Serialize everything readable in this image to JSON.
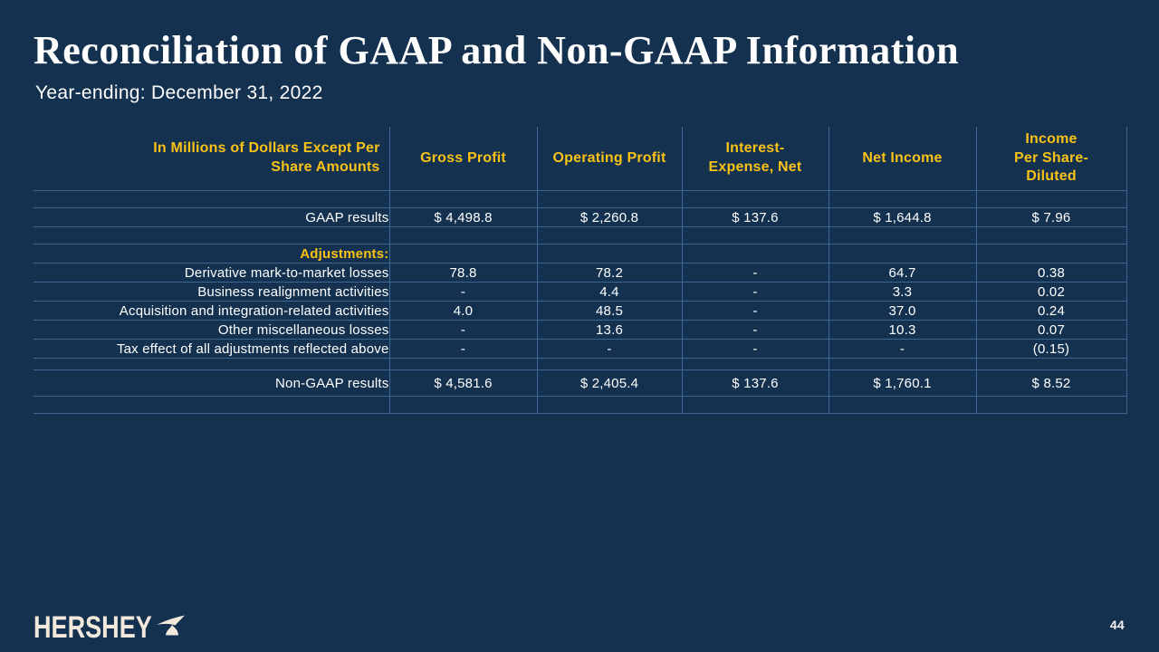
{
  "slide": {
    "title": "Reconciliation of GAAP and Non-GAAP Information",
    "subtitle": "Year-ending: December 31, 2022",
    "page_number": "44",
    "logo_text": "HERSHEY",
    "logo_icon": "hershey-kiss-icon"
  },
  "colors": {
    "background_navy": "#14314F",
    "accent_gold": "#F9C216",
    "text_white": "#FFFFFF",
    "grid_line_blue": "#5C90C6",
    "logo_cream": "#F2E8DC"
  },
  "table": {
    "columns": [
      "In Millions of Dollars Except Per\nShare Amounts",
      "Gross Profit",
      "Operating Profit",
      "Interest-\nExpense, Net",
      "Net Income",
      "Income\nPer Share-\nDiluted"
    ],
    "rows": [
      {
        "type": "spacer",
        "label": "",
        "values": [
          "",
          "",
          "",
          "",
          ""
        ]
      },
      {
        "type": "data",
        "label": "GAAP results",
        "values": [
          "$ 4,498.8",
          "$ 2,260.8",
          "$ 137.6",
          "$ 1,644.8",
          "$ 7.96"
        ]
      },
      {
        "type": "spacer",
        "label": "",
        "values": [
          "",
          "",
          "",
          "",
          ""
        ]
      },
      {
        "type": "section",
        "label": "Adjustments:",
        "values": [
          "",
          "",
          "",
          "",
          ""
        ]
      },
      {
        "type": "data",
        "label": "Derivative mark-to-market losses",
        "values": [
          "78.8",
          "78.2",
          "-",
          "64.7",
          "0.38"
        ]
      },
      {
        "type": "data",
        "label": "Business realignment activities",
        "values": [
          "-",
          "4.4",
          "-",
          "3.3",
          "0.02"
        ]
      },
      {
        "type": "data",
        "label": "Acquisition and integration-related activities",
        "values": [
          "4.0",
          "48.5",
          "-",
          "37.0",
          "0.24"
        ]
      },
      {
        "type": "data",
        "label": "Other miscellaneous losses",
        "values": [
          "-",
          "13.6",
          "-",
          "10.3",
          "0.07"
        ]
      },
      {
        "type": "data",
        "label": "Tax effect of all adjustments reflected above",
        "values": [
          "-",
          "-",
          "-",
          "-",
          "(0.15)"
        ]
      },
      {
        "type": "spacer-sm",
        "label": "",
        "values": [
          "",
          "",
          "",
          "",
          ""
        ]
      },
      {
        "type": "total",
        "label": "Non-GAAP results",
        "values": [
          "$ 4,581.6",
          "$ 2,405.4",
          "$ 137.6",
          "$ 1,760.1",
          "$ 8.52"
        ]
      },
      {
        "type": "spacer",
        "label": "",
        "values": [
          "",
          "",
          "",
          "",
          ""
        ]
      }
    ]
  }
}
